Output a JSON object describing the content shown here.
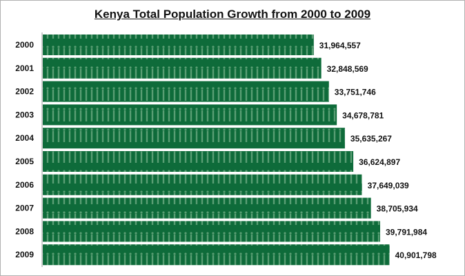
{
  "chart_data": {
    "type": "bar",
    "orientation": "horizontal",
    "title": "Kenya Total Population Growth from 2000 to 2009",
    "categories": [
      "2000",
      "2001",
      "2002",
      "2003",
      "2004",
      "2005",
      "2006",
      "2007",
      "2008",
      "2009"
    ],
    "values": [
      31964557,
      32848569,
      33751746,
      34678781,
      35635267,
      36624897,
      37649039,
      38705934,
      39791984,
      40901798
    ],
    "labels": [
      "31,964,557",
      "32,848,569",
      "33,751,746",
      "34,678,781",
      "35,635,267",
      "36,624,897",
      "37,649,039",
      "38,705,934",
      "39,791,984",
      "40,901,798"
    ],
    "xlim": [
      0,
      45000000
    ],
    "grid": false,
    "bar_color": "#0e6b3a",
    "pattern_color": "#5a9e74"
  }
}
